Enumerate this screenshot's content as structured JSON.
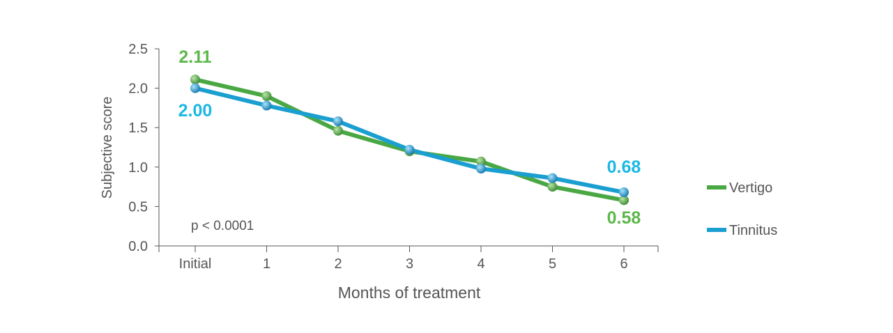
{
  "chart_data": {
    "type": "line",
    "xlabel": "Months of treatment",
    "ylabel": "Subjective score",
    "categories": [
      "Initial",
      "1",
      "2",
      "3",
      "4",
      "5",
      "6"
    ],
    "ylim": [
      0,
      2.5
    ],
    "yticks": [
      "0.0",
      "0.5",
      "1.0",
      "1.5",
      "2.0",
      "2.5"
    ],
    "grid": false,
    "legend_position": "right",
    "series": [
      {
        "name": "Vertigo",
        "color": "#4aa844",
        "values": [
          2.11,
          1.9,
          1.46,
          1.2,
          1.07,
          0.75,
          0.58
        ]
      },
      {
        "name": "Tinnitus",
        "color": "#1a9fd0",
        "values": [
          2.0,
          1.78,
          1.58,
          1.22,
          0.98,
          0.86,
          0.68
        ]
      }
    ],
    "annotations": {
      "pvalue": "p < 0.0001",
      "vertigo_start": "2.11",
      "tinnitus_start": "2.00",
      "tinnitus_end": "0.68",
      "vertigo_end": "0.58"
    },
    "label_colors": {
      "vertigo": "#5cb84a",
      "tinnitus": "#1bb8e4"
    }
  }
}
